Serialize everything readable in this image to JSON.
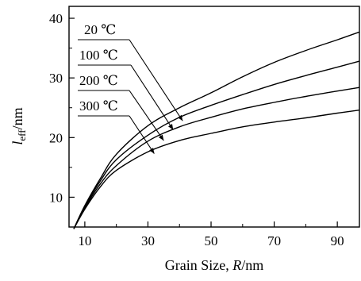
{
  "chart_data": {
    "type": "line",
    "xlabel": "Grain Size, R/nm",
    "xlabel_parts": {
      "prefix": "Grain Size, ",
      "italic": "R",
      "suffix": "/nm"
    },
    "ylabel_parts": {
      "italic": "l",
      "sub": "eff",
      "suffix": "/nm"
    },
    "xlim": [
      5,
      97
    ],
    "ylim": [
      5,
      42
    ],
    "xticks": [
      10,
      30,
      50,
      70,
      90
    ],
    "yticks": [
      10,
      20,
      30,
      40
    ],
    "legend_placement": "top-left, with leader arrows pointing to curves",
    "grid": false,
    "x": [
      6.5,
      10,
      15,
      20,
      30,
      40,
      50,
      60,
      70,
      80,
      90,
      97
    ],
    "series": [
      {
        "name": "20 ℃",
        "values": [
          4.7,
          8.6,
          13.2,
          17.2,
          22.0,
          25.0,
          27.5,
          30.2,
          32.6,
          34.6,
          36.4,
          37.7
        ]
      },
      {
        "name": "100 ℃",
        "values": [
          4.7,
          8.4,
          12.8,
          16.3,
          20.4,
          23.4,
          25.4,
          27.2,
          28.9,
          30.4,
          31.8,
          32.8
        ]
      },
      {
        "name": "200 ℃",
        "values": [
          4.7,
          8.2,
          12.3,
          15.3,
          19.4,
          21.8,
          23.4,
          24.8,
          25.9,
          26.9,
          27.8,
          28.4
        ]
      },
      {
        "name": "300 ℃",
        "values": [
          4.7,
          8.0,
          11.8,
          14.5,
          17.6,
          19.5,
          20.7,
          21.8,
          22.6,
          23.3,
          24.1,
          24.6
        ]
      }
    ],
    "legend_arrow_targets": [
      {
        "x": 41,
        "y": 22.8
      },
      {
        "x": 38,
        "y": 21.3
      },
      {
        "x": 35,
        "y": 19.5
      },
      {
        "x": 32,
        "y": 17.3
      }
    ]
  }
}
